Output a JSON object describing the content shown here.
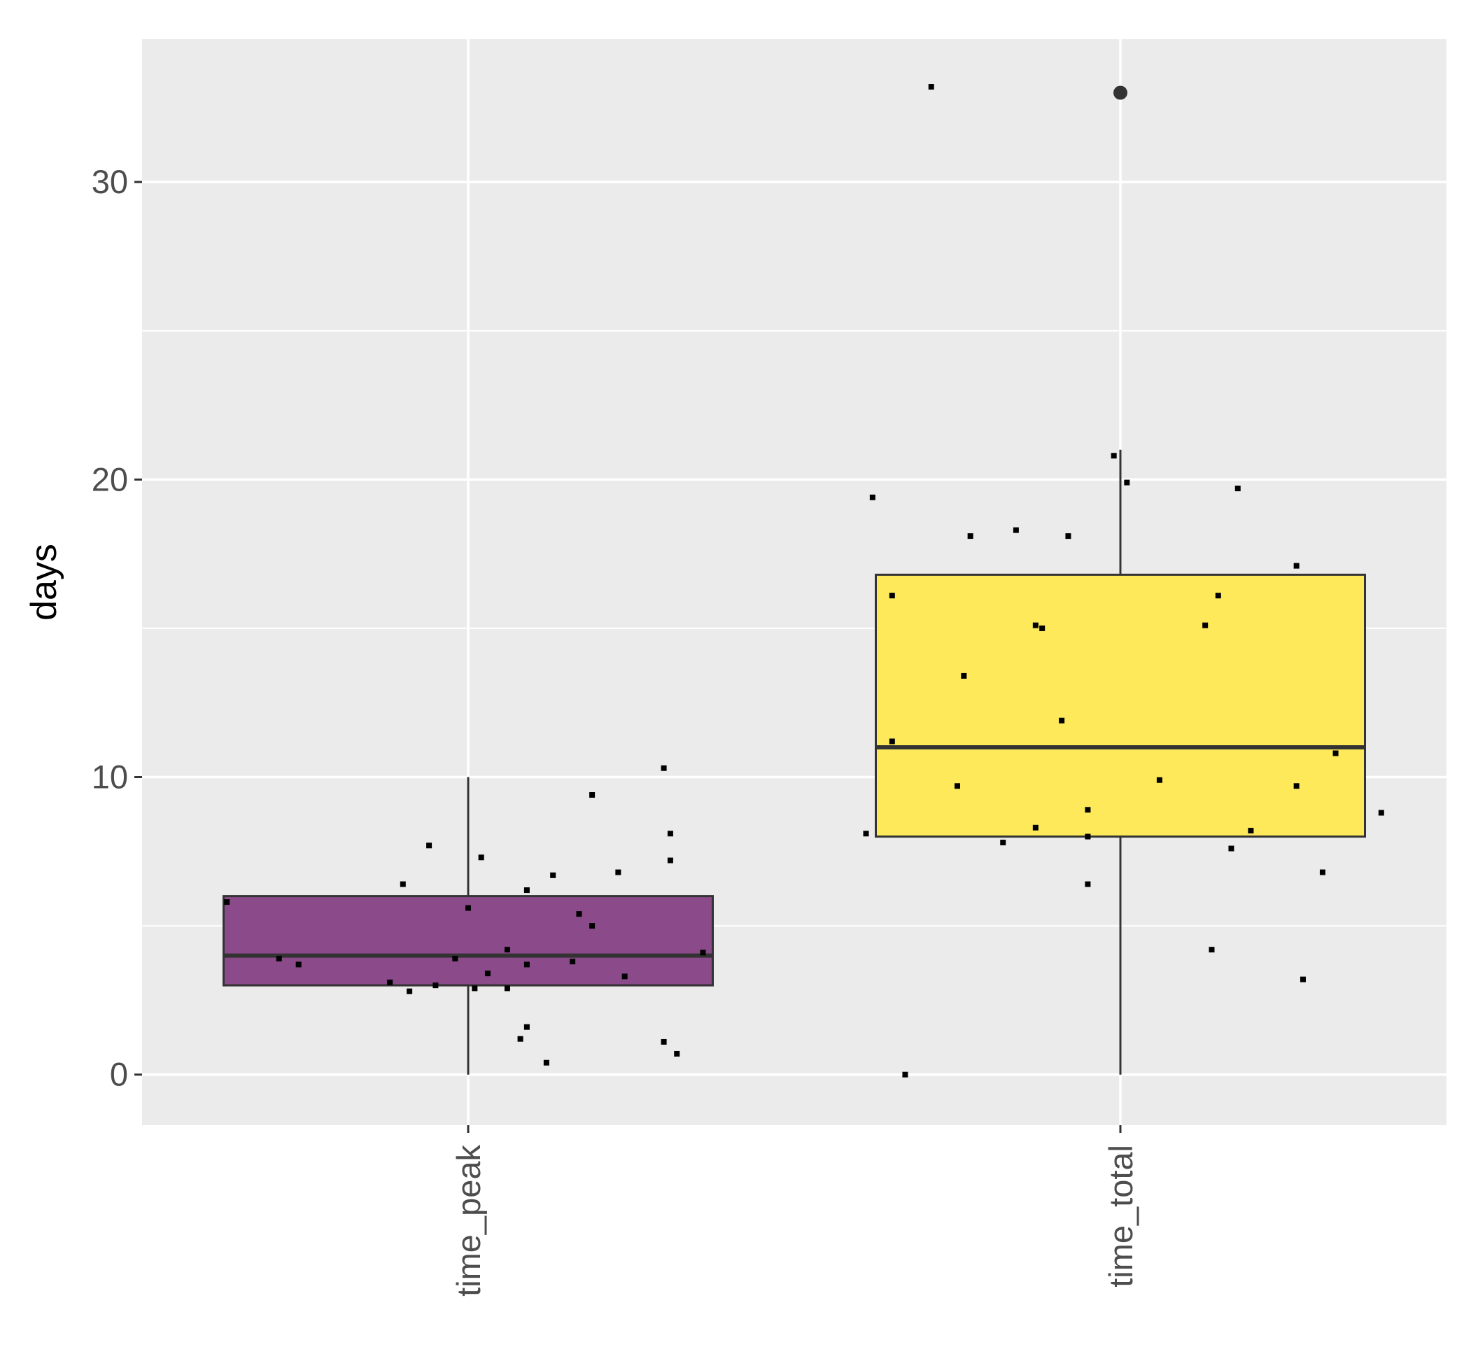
{
  "chart_data": {
    "type": "box",
    "title": "",
    "xlabel": "",
    "ylabel": "days",
    "ylim": [
      -1.7,
      34.8
    ],
    "yticks": [
      0,
      10,
      20,
      30
    ],
    "ytick_labels": [
      "0",
      "10",
      "20",
      "30"
    ],
    "grid": true,
    "legend": "none",
    "background": "#ebebeb",
    "categories": [
      "time_peak",
      "time_total"
    ],
    "boxes": [
      {
        "category": "time_peak",
        "color": "#8b4a8a",
        "whisker_low": 0,
        "q1": 3,
        "median": 4,
        "q3": 6,
        "whisker_high": 10,
        "outliers": []
      },
      {
        "category": "time_total",
        "color": "#fde95a",
        "whisker_low": 0,
        "q1": 8,
        "median": 11,
        "q3": 16.8,
        "whisker_high": 21,
        "outliers": [
          33
        ]
      }
    ],
    "points": [
      {
        "category": "time_peak",
        "x": -0.37,
        "y": 5.8
      },
      {
        "category": "time_peak",
        "x": -0.29,
        "y": 3.9
      },
      {
        "category": "time_peak",
        "x": -0.26,
        "y": 3.7
      },
      {
        "category": "time_peak",
        "x": -0.12,
        "y": 3.1
      },
      {
        "category": "time_peak",
        "x": -0.1,
        "y": 6.4
      },
      {
        "category": "time_peak",
        "x": -0.09,
        "y": 2.8
      },
      {
        "category": "time_peak",
        "x": -0.06,
        "y": 7.7
      },
      {
        "category": "time_peak",
        "x": -0.05,
        "y": 3.0
      },
      {
        "category": "time_peak",
        "x": -0.02,
        "y": 3.9
      },
      {
        "category": "time_peak",
        "x": 0.0,
        "y": 5.6
      },
      {
        "category": "time_peak",
        "x": 0.01,
        "y": 2.9
      },
      {
        "category": "time_peak",
        "x": 0.02,
        "y": 7.3
      },
      {
        "category": "time_peak",
        "x": 0.03,
        "y": 3.4
      },
      {
        "category": "time_peak",
        "x": 0.06,
        "y": 2.9
      },
      {
        "category": "time_peak",
        "x": 0.06,
        "y": 4.2
      },
      {
        "category": "time_peak",
        "x": 0.08,
        "y": 1.2
      },
      {
        "category": "time_peak",
        "x": 0.09,
        "y": 3.7
      },
      {
        "category": "time_peak",
        "x": 0.09,
        "y": 1.6
      },
      {
        "category": "time_peak",
        "x": 0.09,
        "y": 6.2
      },
      {
        "category": "time_peak",
        "x": 0.12,
        "y": 0.4
      },
      {
        "category": "time_peak",
        "x": 0.13,
        "y": 6.7
      },
      {
        "category": "time_peak",
        "x": 0.16,
        "y": 3.8
      },
      {
        "category": "time_peak",
        "x": 0.17,
        "y": 5.4
      },
      {
        "category": "time_peak",
        "x": 0.19,
        "y": 5.0
      },
      {
        "category": "time_peak",
        "x": 0.19,
        "y": 9.4
      },
      {
        "category": "time_peak",
        "x": 0.23,
        "y": 6.8
      },
      {
        "category": "time_peak",
        "x": 0.24,
        "y": 3.3
      },
      {
        "category": "time_peak",
        "x": 0.3,
        "y": 1.1
      },
      {
        "category": "time_peak",
        "x": 0.3,
        "y": 10.3
      },
      {
        "category": "time_peak",
        "x": 0.31,
        "y": 8.1
      },
      {
        "category": "time_peak",
        "x": 0.31,
        "y": 7.2
      },
      {
        "category": "time_peak",
        "x": 0.32,
        "y": 0.7
      },
      {
        "category": "time_peak",
        "x": 0.36,
        "y": 4.1
      },
      {
        "category": "time_total",
        "x": -0.39,
        "y": 8.1
      },
      {
        "category": "time_total",
        "x": -0.38,
        "y": 19.4
      },
      {
        "category": "time_total",
        "x": -0.35,
        "y": 16.1
      },
      {
        "category": "time_total",
        "x": -0.35,
        "y": 11.2
      },
      {
        "category": "time_total",
        "x": -0.33,
        "y": 0.0
      },
      {
        "category": "time_total",
        "x": -0.29,
        "y": 33.2
      },
      {
        "category": "time_total",
        "x": -0.25,
        "y": 9.7
      },
      {
        "category": "time_total",
        "x": -0.24,
        "y": 13.4
      },
      {
        "category": "time_total",
        "x": -0.23,
        "y": 18.1
      },
      {
        "category": "time_total",
        "x": -0.18,
        "y": 7.8
      },
      {
        "category": "time_total",
        "x": -0.16,
        "y": 18.3
      },
      {
        "category": "time_total",
        "x": -0.13,
        "y": 15.1
      },
      {
        "category": "time_total",
        "x": -0.13,
        "y": 8.3
      },
      {
        "category": "time_total",
        "x": -0.12,
        "y": 15.0
      },
      {
        "category": "time_total",
        "x": -0.09,
        "y": 11.9
      },
      {
        "category": "time_total",
        "x": -0.08,
        "y": 18.1
      },
      {
        "category": "time_total",
        "x": -0.05,
        "y": 8.9
      },
      {
        "category": "time_total",
        "x": -0.05,
        "y": 6.4
      },
      {
        "category": "time_total",
        "x": -0.05,
        "y": 8.0
      },
      {
        "category": "time_total",
        "x": -0.01,
        "y": 20.8
      },
      {
        "category": "time_total",
        "x": 0.01,
        "y": 19.9
      },
      {
        "category": "time_total",
        "x": 0.06,
        "y": 9.9
      },
      {
        "category": "time_total",
        "x": 0.13,
        "y": 15.1
      },
      {
        "category": "time_total",
        "x": 0.15,
        "y": 16.1
      },
      {
        "category": "time_total",
        "x": 0.14,
        "y": 4.2
      },
      {
        "category": "time_total",
        "x": 0.17,
        "y": 7.6
      },
      {
        "category": "time_total",
        "x": 0.18,
        "y": 19.7
      },
      {
        "category": "time_total",
        "x": 0.2,
        "y": 8.2
      },
      {
        "category": "time_total",
        "x": 0.27,
        "y": 17.1
      },
      {
        "category": "time_total",
        "x": 0.27,
        "y": 9.7
      },
      {
        "category": "time_total",
        "x": 0.28,
        "y": 3.2
      },
      {
        "category": "time_total",
        "x": 0.31,
        "y": 6.8
      },
      {
        "category": "time_total",
        "x": 0.33,
        "y": 10.8
      },
      {
        "category": "time_total",
        "x": 0.4,
        "y": 8.8
      }
    ]
  }
}
